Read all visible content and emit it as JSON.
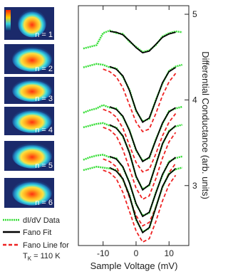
{
  "chart_data": {
    "type": "line",
    "x_label": "Sample Voltage (mV)",
    "y_label": "Differential Conductance (arb. units)",
    "xlim": [
      -17.5,
      16
    ],
    "ylim": [
      2.3,
      5.1
    ],
    "xticks": [
      -10,
      0,
      10
    ],
    "yticks": [
      3,
      4,
      5
    ],
    "panels": [
      "n = 1",
      "n = 2",
      "n = 3",
      "n = 4",
      "n = 5",
      "n = 6"
    ],
    "legend": [
      {
        "name": "dI/dV Data",
        "color": "#33dd33"
      },
      {
        "name": "Fano Fit",
        "color": "#000000"
      },
      {
        "name": "Fano Line for",
        "name_base": "T",
        "name_sub": "K",
        "name_tail": " = 110 K",
        "color": "#ee2222"
      }
    ],
    "x_data": [
      -16,
      -14,
      -12,
      -10,
      -8,
      -6,
      -4,
      -2,
      0,
      2,
      4,
      6,
      8,
      10,
      12,
      14
    ],
    "x_fit": [
      -8,
      -6,
      -4,
      -2,
      0,
      2,
      4,
      6,
      8,
      10,
      12
    ],
    "x_fano": [
      -10,
      -8,
      -6,
      -4,
      -2,
      0,
      2,
      4,
      6,
      8,
      10,
      12
    ],
    "curves": [
      {
        "data": [
          4.6,
          4.62,
          4.64,
          4.78,
          4.81,
          4.78,
          4.77,
          4.68,
          4.62,
          4.56,
          4.58,
          4.64,
          4.74,
          4.78,
          4.8,
          4.79
        ],
        "fit": [
          4.8,
          4.79,
          4.76,
          4.69,
          4.61,
          4.55,
          4.57,
          4.65,
          4.73,
          4.77,
          4.79
        ]
      },
      {
        "data": [
          4.38,
          4.4,
          4.42,
          4.41,
          4.38,
          4.37,
          4.27,
          4.12,
          3.87,
          3.75,
          3.78,
          4.0,
          4.19,
          4.34,
          4.39,
          4.41
        ],
        "fit": [
          4.39,
          4.36,
          4.28,
          4.11,
          3.88,
          3.74,
          3.79,
          3.99,
          4.2,
          4.33,
          4.38
        ],
        "fano": [
          4.36,
          4.33,
          4.27,
          4.14,
          3.94,
          3.74,
          3.63,
          3.66,
          3.84,
          4.05,
          4.21,
          4.31
        ]
      },
      {
        "data": [
          3.85,
          3.88,
          3.9,
          3.94,
          3.91,
          3.9,
          3.8,
          3.65,
          3.41,
          3.29,
          3.32,
          3.54,
          3.72,
          3.87,
          3.9,
          3.92
        ],
        "fit": [
          3.92,
          3.89,
          3.81,
          3.64,
          3.42,
          3.28,
          3.33,
          3.53,
          3.73,
          3.86,
          3.91
        ],
        "fano": [
          3.89,
          3.86,
          3.8,
          3.67,
          3.47,
          3.27,
          3.16,
          3.19,
          3.37,
          3.58,
          3.74,
          3.84
        ]
      },
      {
        "data": [
          3.68,
          3.7,
          3.72,
          3.73,
          3.7,
          3.68,
          3.57,
          3.39,
          3.1,
          2.96,
          3.0,
          3.25,
          3.48,
          3.64,
          3.69,
          3.71
        ],
        "fit": [
          3.71,
          3.67,
          3.58,
          3.38,
          3.11,
          2.95,
          3.01,
          3.24,
          3.49,
          3.63,
          3.7
        ],
        "fano": [
          3.68,
          3.65,
          3.58,
          3.42,
          3.2,
          2.97,
          2.84,
          2.88,
          3.08,
          3.32,
          3.51,
          3.62
        ]
      },
      {
        "data": [
          3.3,
          3.33,
          3.35,
          3.36,
          3.33,
          3.32,
          3.21,
          3.04,
          2.78,
          2.65,
          2.68,
          2.92,
          3.12,
          3.28,
          3.32,
          3.34
        ],
        "fit": [
          3.34,
          3.31,
          3.22,
          3.03,
          2.79,
          2.64,
          2.69,
          2.91,
          3.13,
          3.27,
          3.33
        ],
        "fano": [
          3.31,
          3.28,
          3.22,
          3.07,
          2.86,
          2.65,
          2.53,
          2.57,
          2.75,
          2.98,
          3.15,
          3.26
        ]
      },
      {
        "data": [
          3.18,
          3.2,
          3.22,
          3.21,
          3.2,
          3.18,
          3.07,
          2.89,
          2.6,
          2.46,
          2.5,
          2.75,
          2.98,
          3.14,
          3.19,
          3.21
        ],
        "fit": [
          3.21,
          3.17,
          3.08,
          2.88,
          2.61,
          2.45,
          2.51,
          2.74,
          2.99,
          3.13,
          3.2
        ],
        "fano": [
          3.18,
          3.15,
          3.08,
          2.92,
          2.7,
          2.47,
          2.34,
          2.38,
          2.58,
          2.82,
          3.01,
          3.12
        ]
      }
    ]
  }
}
